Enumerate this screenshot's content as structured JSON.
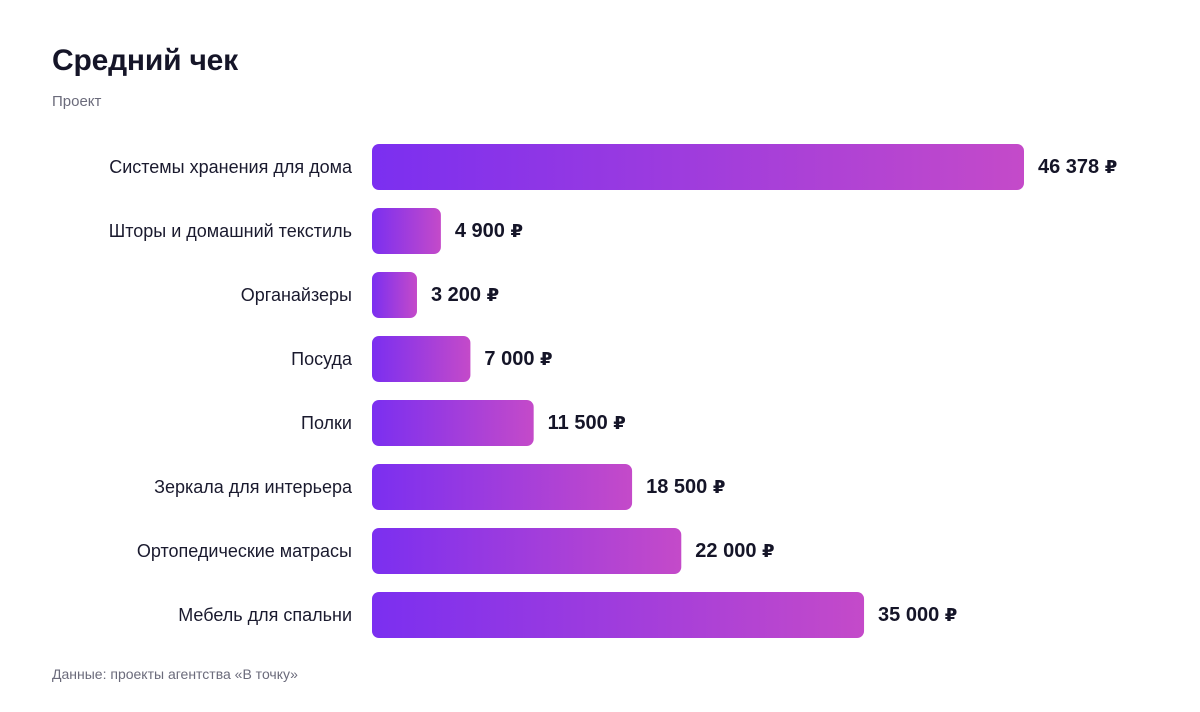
{
  "header": {
    "title": "Средний чек",
    "subtitle": "Проект"
  },
  "footer": {
    "note": "Данные: проекты агентства «В точку»"
  },
  "colors": {
    "bar_start": "#7b2ff0",
    "bar_end": "#c44ac9",
    "label": "#1a1a2e",
    "value": "#151528"
  },
  "chart_data": {
    "type": "bar",
    "orientation": "horizontal",
    "title": "Средний чек",
    "subtitle": "Проект",
    "currency": "₽",
    "categories": [
      "Системы хранения для дома",
      "Шторы и домашний текстиль",
      "Органайзеры",
      "Посуда",
      "Полки",
      "Зеркала для интерьера",
      "Ортопедические матрасы",
      "Мебель для спальни"
    ],
    "values": [
      46378,
      4900,
      3200,
      7000,
      11500,
      18500,
      22000,
      35000
    ],
    "value_labels": [
      "46 378",
      "4 900",
      "3 200",
      "7 000",
      "11 500",
      "18 500",
      "22 000",
      "35 000"
    ],
    "grid": false,
    "legend": false
  }
}
